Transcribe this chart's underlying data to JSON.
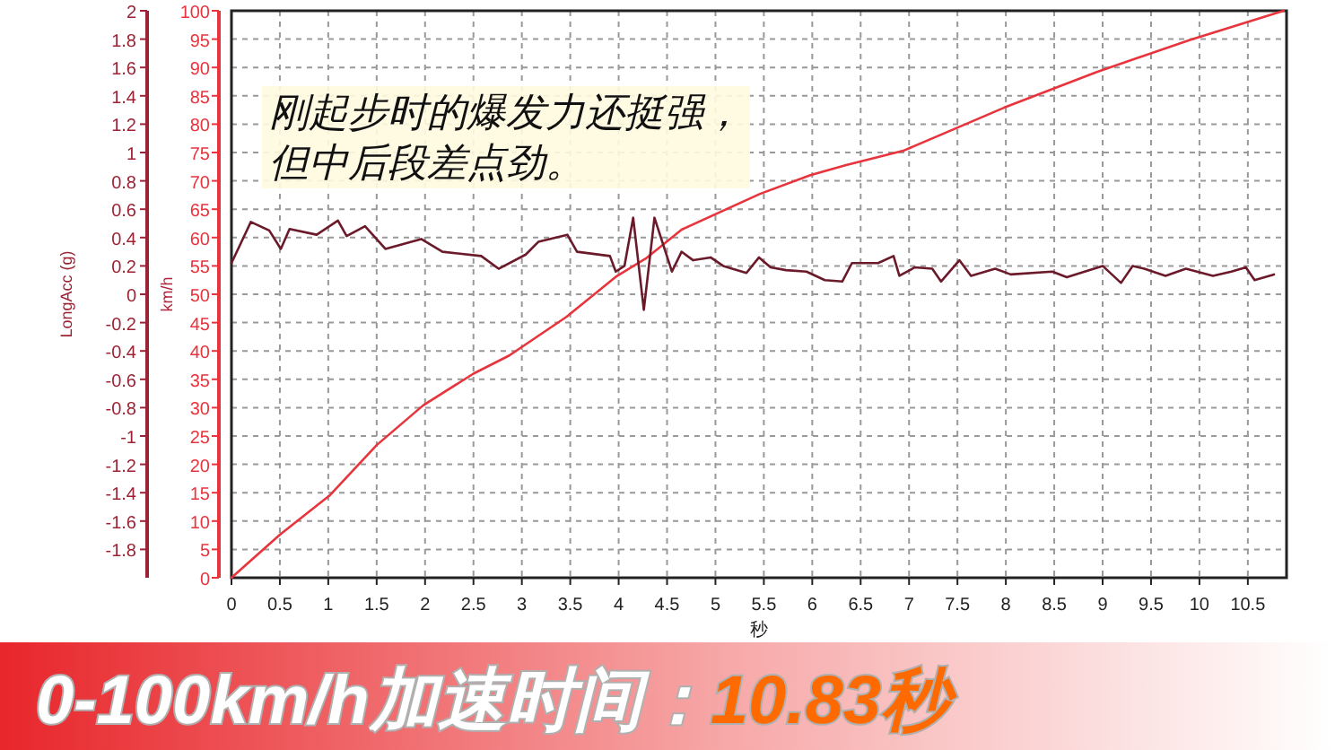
{
  "chart_data": {
    "type": "line",
    "title": "0-100km/h加速时间：",
    "subtitle": "10.83秒",
    "xlabel": "秒",
    "ylabel": "km/h",
    "y2label": "LongAcc (g)",
    "annotations": [
      "刚起步时的爆发力还挺强，",
      "但中后段差点劲。"
    ],
    "series": [
      {
        "color": "#e8343c",
        "x": [
          0,
          0.5,
          1.02,
          1.5,
          1.98,
          2.5,
          2.87,
          3.46,
          3.98,
          4.28,
          4.65,
          5.46,
          5.98,
          6.35,
          6.94,
          7.46,
          7.98,
          8.94,
          9.91,
          10.87
        ],
        "values": [
          0,
          7.6,
          14.6,
          23.4,
          30.4,
          36,
          39.2,
          46,
          53.2,
          56.3,
          61.4,
          67.7,
          71,
          72.8,
          75.3,
          79.1,
          82.9,
          89.2,
          94.9,
          100
        ]
      },
      {
        "color": "#6b1a2a",
        "axis": "y2",
        "x": [
          0,
          0.2,
          0.39,
          0.51,
          0.6,
          0.88,
          1.1,
          1.19,
          1.38,
          1.59,
          1.96,
          2.18,
          2.58,
          2.76,
          3.04,
          3.17,
          3.47,
          3.57,
          3.91,
          3.97,
          4.06,
          4.15,
          4.26,
          4.37,
          4.55,
          4.65,
          4.77,
          4.95,
          5.08,
          5.32,
          5.45,
          5.57,
          5.73,
          5.94,
          6.13,
          6.31,
          6.41,
          6.68,
          6.84,
          6.9,
          7.06,
          7.24,
          7.33,
          7.52,
          7.64,
          7.89,
          8.05,
          8.48,
          8.63,
          9.0,
          9.19,
          9.31,
          9.43,
          9.65,
          9.86,
          10.14,
          10.33,
          10.48,
          10.57,
          10.77
        ],
        "values": [
          0.22,
          0.51,
          0.45,
          0.32,
          0.46,
          0.42,
          0.52,
          0.41,
          0.48,
          0.32,
          0.39,
          0.3,
          0.27,
          0.18,
          0.28,
          0.37,
          0.42,
          0.3,
          0.27,
          0.16,
          0.2,
          0.54,
          -0.11,
          0.54,
          0.16,
          0.3,
          0.24,
          0.26,
          0.2,
          0.15,
          0.26,
          0.19,
          0.17,
          0.16,
          0.1,
          0.09,
          0.22,
          0.22,
          0.27,
          0.13,
          0.19,
          0.18,
          0.09,
          0.24,
          0.13,
          0.18,
          0.14,
          0.16,
          0.12,
          0.2,
          0.08,
          0.2,
          0.18,
          0.13,
          0.18,
          0.13,
          0.16,
          0.19,
          0.1,
          0.14
        ]
      }
    ],
    "xlim": [
      0,
      10.9
    ],
    "xticks": [
      0,
      0.5,
      1,
      1.5,
      2,
      2.5,
      3,
      3.5,
      4,
      4.5,
      5,
      5.5,
      6,
      6.5,
      7,
      7.5,
      8,
      8.5,
      9,
      9.5,
      10,
      10.5
    ],
    "ylim": [
      0,
      100
    ],
    "yticks": [
      0,
      5,
      10,
      15,
      20,
      25,
      30,
      35,
      40,
      45,
      50,
      55,
      60,
      65,
      70,
      75,
      80,
      85,
      90,
      95,
      100
    ],
    "y2lim": [
      -2,
      2
    ],
    "y2ticks": [
      -1.8,
      -1.6,
      -1.4,
      -1.2,
      -1,
      -0.8,
      -0.6,
      -0.4,
      -0.2,
      0,
      0.2,
      0.4,
      0.6,
      0.8,
      1,
      1.2,
      1.4,
      1.6,
      1.8,
      2
    ],
    "grid": true,
    "line_style": "solid"
  }
}
